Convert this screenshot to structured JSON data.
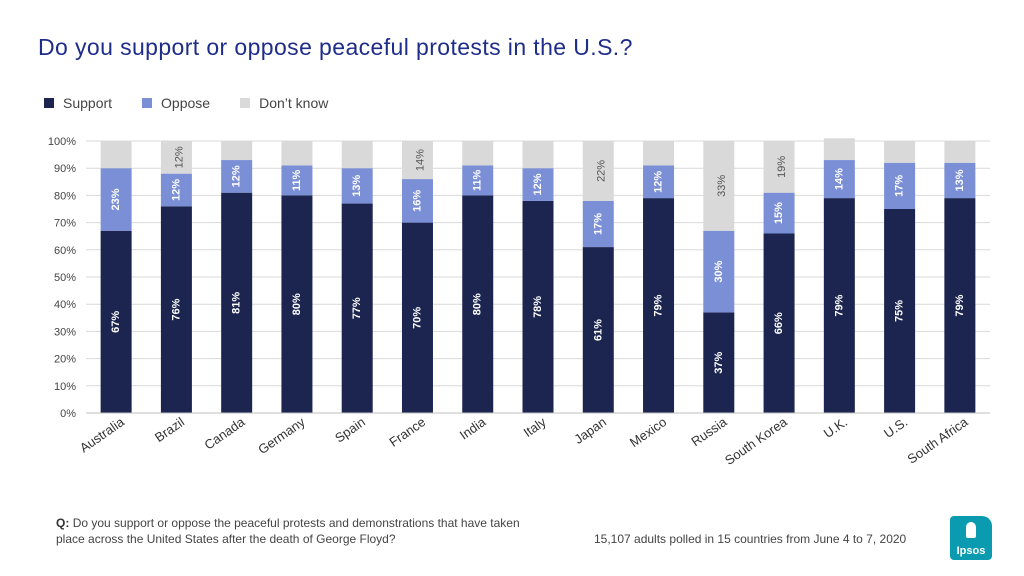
{
  "title": "Do you support or oppose peaceful protests in the U.S.?",
  "legend": [
    {
      "label": "Support",
      "color": "#1b2550"
    },
    {
      "label": "Oppose",
      "color": "#7a8fd6"
    },
    {
      "label": "Don’t know",
      "color": "#d9d9d9"
    }
  ],
  "footnote": {
    "q_label": "Q:",
    "question": "Do you support or oppose the peaceful protests and demonstrations that have taken place across the United States after the death of George Floyd?"
  },
  "source": "15,107 adults polled in 15 countries from June 4 to 7, 2020",
  "logo": {
    "text": "Ipsos",
    "color": "#0a9bb0"
  },
  "chart_data": {
    "type": "bar",
    "stacked": true,
    "categories": [
      "Australia",
      "Brazil",
      "Canada",
      "Germany",
      "Spain",
      "France",
      "India",
      "Italy",
      "Japan",
      "Mexico",
      "Russia",
      "South Korea",
      "U.K.",
      "U.S.",
      "South Africa"
    ],
    "series": [
      {
        "name": "Support",
        "color": "#1b2550",
        "values": [
          67,
          76,
          81,
          80,
          77,
          70,
          80,
          78,
          61,
          79,
          37,
          66,
          79,
          75,
          79
        ],
        "labels": [
          true,
          true,
          true,
          true,
          true,
          true,
          true,
          true,
          true,
          true,
          true,
          true,
          true,
          true,
          true
        ]
      },
      {
        "name": "Oppose",
        "color": "#7a8fd6",
        "values": [
          23,
          12,
          12,
          11,
          13,
          16,
          11,
          12,
          17,
          12,
          30,
          15,
          14,
          17,
          13
        ],
        "labels": [
          true,
          true,
          true,
          true,
          true,
          true,
          true,
          true,
          true,
          true,
          true,
          true,
          true,
          true,
          true
        ]
      },
      {
        "name": "Don’t know",
        "color": "#d9d9d9",
        "values": [
          10,
          12,
          7,
          9,
          10,
          14,
          9,
          10,
          22,
          9,
          33,
          19,
          8,
          8,
          8
        ],
        "labels": [
          false,
          true,
          false,
          false,
          false,
          true,
          false,
          false,
          true,
          false,
          true,
          true,
          false,
          false,
          false
        ]
      }
    ],
    "yticks": [
      "0%",
      "10%",
      "20%",
      "30%",
      "40%",
      "50%",
      "60%",
      "70%",
      "80%",
      "90%",
      "100%"
    ],
    "ylim": [
      0,
      100
    ],
    "grid": true,
    "legend_position": "top-left"
  }
}
